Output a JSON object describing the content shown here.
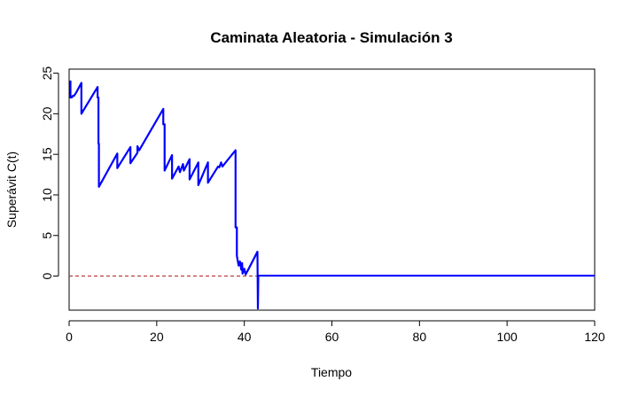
{
  "chart_data": {
    "type": "line",
    "title": "Caminata Aleatoria - Simulación 3",
    "xlabel": "Tiempo",
    "ylabel": "Superávit C(t)",
    "xlim": [
      0,
      120
    ],
    "ylim": [
      -4.2,
      25.5
    ],
    "x_ticks": [
      0,
      20,
      40,
      60,
      80,
      100,
      120
    ],
    "y_ticks": [
      0,
      5,
      10,
      15,
      20,
      25
    ],
    "grid": false,
    "reference_line": {
      "y": 0,
      "color": "#B22222",
      "style": "dashed"
    },
    "series": [
      {
        "color": "#0000FF",
        "points": [
          [
            0.3,
            24.1
          ],
          [
            0.3,
            22.0
          ],
          [
            0.6,
            22.0
          ],
          [
            0.8,
            22.2
          ],
          [
            1.1,
            22.2
          ],
          [
            1.6,
            22.6
          ],
          [
            2.2,
            23.2
          ],
          [
            2.8,
            23.8
          ],
          [
            2.8,
            20.0
          ],
          [
            6.5,
            23.3
          ],
          [
            6.5,
            22.0
          ],
          [
            6.7,
            22.0
          ],
          [
            6.7,
            16.3
          ],
          [
            6.8,
            16.3
          ],
          [
            6.8,
            11.0
          ],
          [
            11.0,
            15.1
          ],
          [
            11.0,
            13.3
          ],
          [
            14.0,
            15.9
          ],
          [
            14.0,
            13.9
          ],
          [
            15.6,
            15.2
          ],
          [
            15.6,
            16.0
          ],
          [
            16.0,
            15.5
          ],
          [
            21.5,
            20.6
          ],
          [
            21.5,
            18.7
          ],
          [
            21.8,
            18.7
          ],
          [
            21.8,
            13.0
          ],
          [
            23.5,
            14.9
          ],
          [
            23.5,
            12.0
          ],
          [
            25.0,
            13.5
          ],
          [
            25.3,
            12.8
          ],
          [
            26.0,
            13.8
          ],
          [
            26.2,
            13.0
          ],
          [
            27.5,
            14.4
          ],
          [
            27.5,
            11.9
          ],
          [
            29.5,
            14.0
          ],
          [
            29.5,
            11.2
          ],
          [
            31.7,
            14.0
          ],
          [
            31.7,
            11.5
          ],
          [
            34.0,
            13.5
          ],
          [
            34.3,
            13.4
          ],
          [
            34.7,
            14.0
          ],
          [
            35.0,
            13.5
          ],
          [
            36.5,
            14.5
          ],
          [
            38.0,
            15.5
          ],
          [
            38.0,
            6.0
          ],
          [
            38.3,
            6.0
          ],
          [
            38.3,
            2.5
          ],
          [
            38.7,
            1.3
          ],
          [
            39.0,
            1.8
          ],
          [
            39.3,
            0.8
          ],
          [
            39.5,
            1.6
          ],
          [
            39.6,
            0.3
          ],
          [
            40.0,
            0.9
          ],
          [
            40.3,
            0.2
          ],
          [
            41.0,
            0.9
          ],
          [
            43.0,
            3.0
          ],
          [
            43.1,
            -4.0
          ],
          [
            43.2,
            0.05
          ],
          [
            120.0,
            0.05
          ]
        ]
      }
    ]
  }
}
